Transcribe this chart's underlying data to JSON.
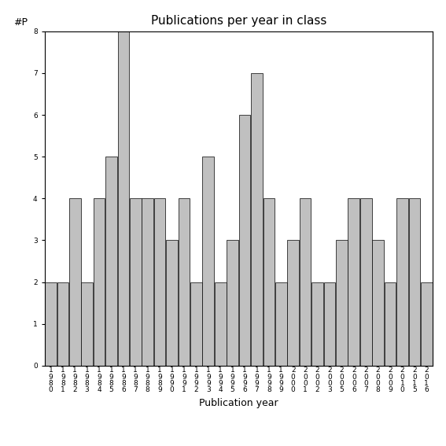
{
  "years": [
    "1980",
    "1981",
    "1982",
    "1983",
    "1984",
    "1985",
    "1986",
    "1987",
    "1988",
    "1989",
    "1990",
    "1991",
    "1992",
    "1993",
    "1994",
    "1995",
    "1996",
    "1997",
    "1998",
    "1999",
    "2000",
    "2001",
    "2002",
    "2003",
    "2005",
    "2006",
    "2007",
    "2008",
    "2009",
    "2010",
    "2015",
    "2016"
  ],
  "values": [
    2,
    2,
    4,
    2,
    4,
    5,
    8,
    4,
    4,
    4,
    3,
    4,
    2,
    5,
    2,
    3,
    6,
    7,
    4,
    2,
    3,
    4,
    2,
    2,
    3,
    4,
    4,
    3,
    2,
    4,
    4,
    2
  ],
  "bar_color": "#c0c0c0",
  "bar_edge_color": "#000000",
  "title": "Publications per year in class",
  "xlabel": "Publication year",
  "ylabel": "#P",
  "ylim": [
    0,
    8
  ],
  "yticks": [
    0,
    1,
    2,
    3,
    4,
    5,
    6,
    7,
    8
  ],
  "background_color": "#ffffff",
  "title_fontsize": 11,
  "axis_label_fontsize": 9,
  "tick_fontsize": 6.5
}
